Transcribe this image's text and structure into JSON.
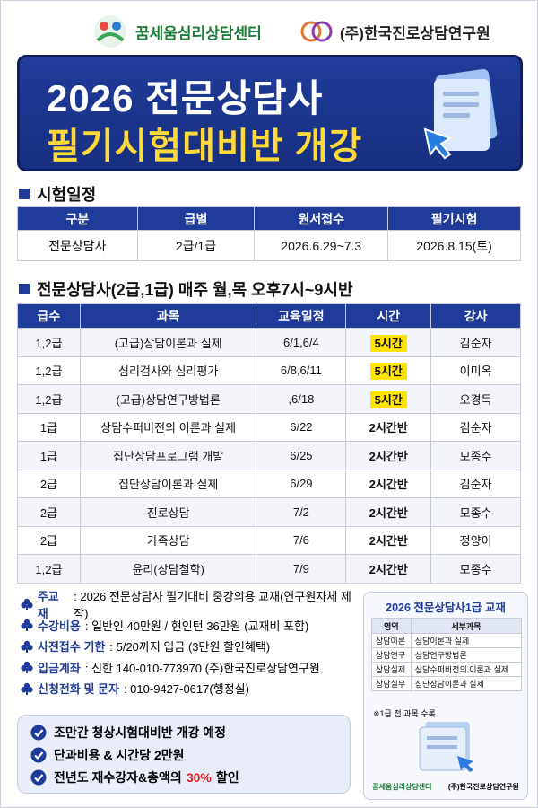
{
  "header": {
    "logo_left": "꿈세움심리상담센터",
    "logo_right": "(주)한국진로상담연구원"
  },
  "banner": {
    "title_line1": "2026 전문상담사",
    "title_line2": "필기시험대비반 개강"
  },
  "exam_schedule": {
    "heading": "시험일정",
    "table": {
      "headers": [
        "구분",
        "급별",
        "원서접수",
        "필기시험"
      ],
      "rows": [
        [
          "전문상담사",
          "2급/1급",
          "2026.6.29~7.3",
          "2026.8.15(토)"
        ]
      ]
    }
  },
  "course_schedule": {
    "heading": "전문상담사(2급,1급) 매주 월,목 오후7시~9시반",
    "table": {
      "headers": [
        "급수",
        "과목",
        "교육일정",
        "시간",
        "강사"
      ],
      "rows": [
        [
          "1,2급",
          "(고급)상담이론과 실제",
          "6/1,6/4",
          "5시간",
          "김순자"
        ],
        [
          "1,2급",
          "심리검사와 심리평가",
          "6/8,6/11",
          "5시간",
          "이미옥"
        ],
        [
          "1,2급",
          "(고급)상담연구방법론",
          ",6/18",
          "5시간",
          "오경득"
        ],
        [
          "1급",
          "상담수퍼비전의 이론과 실제",
          "6/22",
          "2시간반",
          "김순자"
        ],
        [
          "1급",
          "집단상담프로그램 개발",
          "6/25",
          "2시간반",
          "모종수"
        ],
        [
          "2급",
          "집단상담이론과 실제",
          "6/29",
          "2시간반",
          "김순자"
        ],
        [
          "2급",
          "진로상담",
          "7/2",
          "2시간반",
          "모종수"
        ],
        [
          "2급",
          "가족상담",
          "7/6",
          "2시간반",
          "정양이"
        ],
        [
          "1,2급",
          "윤리(상담철학)",
          "7/9",
          "2시간반",
          "모종수"
        ]
      ]
    },
    "highlighted_rows": [
      0,
      1,
      2
    ]
  },
  "info": {
    "items": [
      {
        "label": "주교재",
        "value": ": 2026 전문상담사 필기대비 중강의용 교재(연구원자체 제작)"
      },
      {
        "label": "수강비용",
        "value": ": 일반인 40만원 / 현인턴 36만원 (교재비 포함)"
      },
      {
        "label": "사전접수 기한",
        "value": ": 5/20까지 입금 (3만원 할인혜택)"
      },
      {
        "label": "입금계좌",
        "value": ": 신한 140-010-773970 (주)한국진로상담연구원"
      },
      {
        "label": "신청전화 및 문자",
        "value": ": 010-9427-0617(행정실)"
      }
    ]
  },
  "notice": {
    "items": [
      {
        "parts": [
          "조만간 청상시험대비반 개강 예정"
        ]
      },
      {
        "parts": [
          "단과비용 & 시간당 2만원"
        ]
      },
      {
        "parts": [
          "전년도 재수강자&총액의",
          "30%",
          "할인"
        ],
        "emphasis_part": 1
      }
    ]
  },
  "textbook_box": {
    "title": "2026 전문상담사1급 교재",
    "table": {
      "headers": [
        "영역",
        "세부과목"
      ],
      "rows": [
        [
          "상담이론",
          "상담이론과 실제"
        ],
        [
          "상담연구",
          "상담연구방법론"
        ],
        [
          "상담실제",
          "상담수퍼비전의 이론과 실제"
        ],
        [
          "상담실무",
          "집단상담이론과 실제"
        ]
      ]
    },
    "note": "※1급 전 과목 수록",
    "footer_logos": [
      "꿈세움심리상담센터",
      "(주)한국진로상담연구원"
    ]
  }
}
